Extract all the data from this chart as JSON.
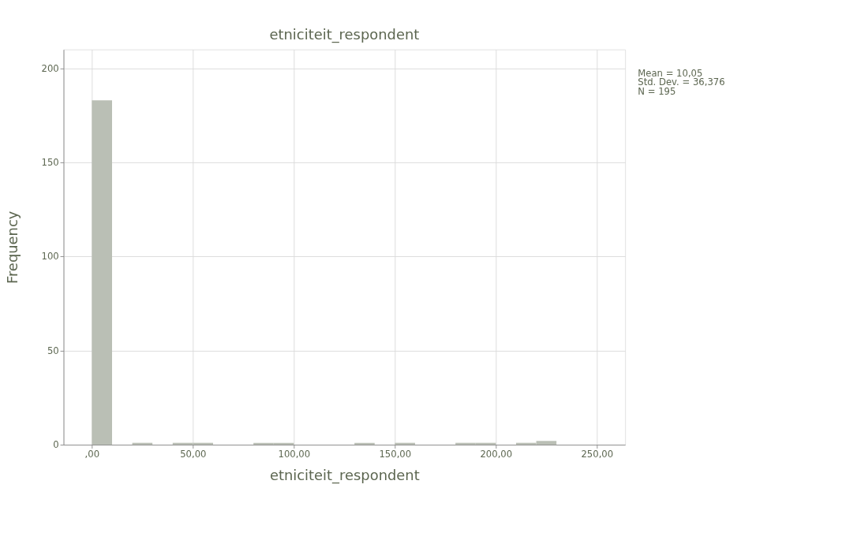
{
  "chart_data": {
    "type": "histogram",
    "title": "etniciteit_respondent",
    "xlabel": "etniciteit_respondent",
    "ylabel": "Frequency",
    "bins": [
      0,
      10,
      20,
      30,
      40,
      50,
      60,
      70,
      80,
      90,
      100,
      110,
      120,
      130,
      140,
      150,
      160,
      170,
      180,
      190,
      200,
      210,
      220,
      230
    ],
    "values": [
      183,
      0,
      1,
      0,
      1,
      1,
      0,
      0,
      1,
      1,
      0,
      0,
      0,
      1,
      0,
      1,
      0,
      0,
      1,
      1,
      0,
      1,
      2
    ],
    "color": "#babfb5",
    "xlim": [
      -14,
      264
    ],
    "xticks": [
      {
        "value": 0,
        "label": ",00"
      },
      {
        "value": 50,
        "label": "50,00"
      },
      {
        "value": 100,
        "label": "100,00"
      },
      {
        "value": 150,
        "label": "150,00"
      },
      {
        "value": 200,
        "label": "200,00"
      },
      {
        "value": 250,
        "label": "250,00"
      }
    ],
    "ylim": [
      0,
      210
    ],
    "yticks": [
      0,
      50,
      100,
      150,
      200
    ],
    "grid": true,
    "annotations": [
      "Mean = 10,05",
      "Std. Dev. = 36,376",
      "N = 195"
    ]
  }
}
